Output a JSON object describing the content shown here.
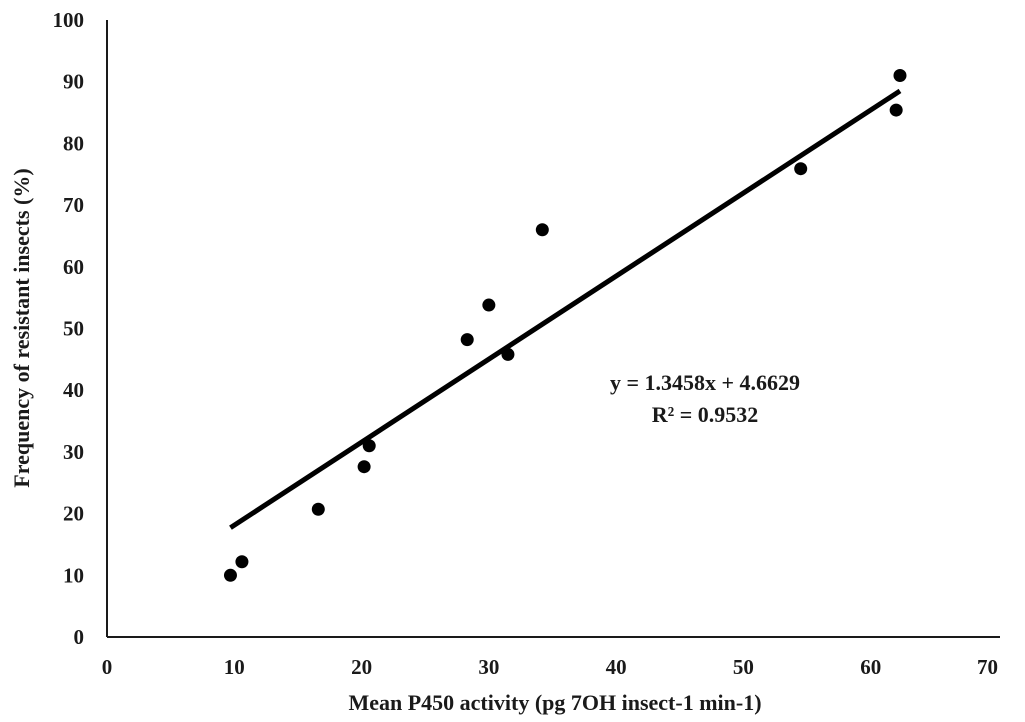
{
  "chart_data": {
    "type": "scatter",
    "title": "",
    "xlabel": "Mean P450 activity (pg 7OH insect-1 min-1)",
    "ylabel": "Frequency of resistant insects (%)",
    "xlim": [
      0,
      70
    ],
    "ylim": [
      0,
      100
    ],
    "xticks": [
      0,
      10,
      20,
      30,
      40,
      50,
      60,
      70
    ],
    "yticks": [
      0,
      10,
      20,
      30,
      40,
      50,
      60,
      70,
      80,
      90,
      100
    ],
    "grid": false,
    "points": [
      {
        "x": 9.7,
        "y": 10.0
      },
      {
        "x": 10.6,
        "y": 12.2
      },
      {
        "x": 16.6,
        "y": 20.7
      },
      {
        "x": 20.2,
        "y": 27.6
      },
      {
        "x": 20.6,
        "y": 31.0
      },
      {
        "x": 28.3,
        "y": 48.2
      },
      {
        "x": 30.0,
        "y": 53.8
      },
      {
        "x": 31.5,
        "y": 45.8
      },
      {
        "x": 34.2,
        "y": 66.0
      },
      {
        "x": 54.5,
        "y": 75.9
      },
      {
        "x": 62.0,
        "y": 85.4
      },
      {
        "x": 62.3,
        "y": 91.0
      }
    ],
    "trendline": {
      "type": "linear",
      "slope": 1.3458,
      "intercept": 4.6629,
      "x_range": [
        9.7,
        62.3
      ],
      "equation": "y = 1.3458x + 4.6629",
      "r_squared": "R² = 0.9532"
    }
  }
}
